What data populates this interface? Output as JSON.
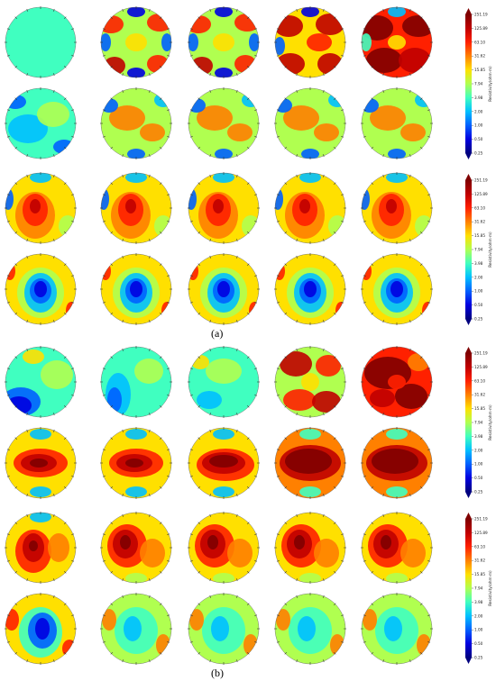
{
  "panels": [
    {
      "label": "(a)",
      "rows": 4,
      "cols": 5
    },
    {
      "label": "(b)",
      "rows": 4,
      "cols": 5
    }
  ],
  "colorbar": {
    "title": "Resistivity(ohm·m)",
    "ticks": [
      "251.19",
      "125.89",
      "63.10",
      "31.62",
      "15.85",
      "7.94",
      "3.98",
      "2.00",
      "1.00",
      "0.50",
      "0.25"
    ],
    "colors": [
      "#00007f",
      "#0000e0",
      "#0060ff",
      "#00c0ff",
      "#40ffc0",
      "#b0ff50",
      "#ffe000",
      "#ff8000",
      "#ff2000",
      "#c00000",
      "#7f0000"
    ]
  }
}
